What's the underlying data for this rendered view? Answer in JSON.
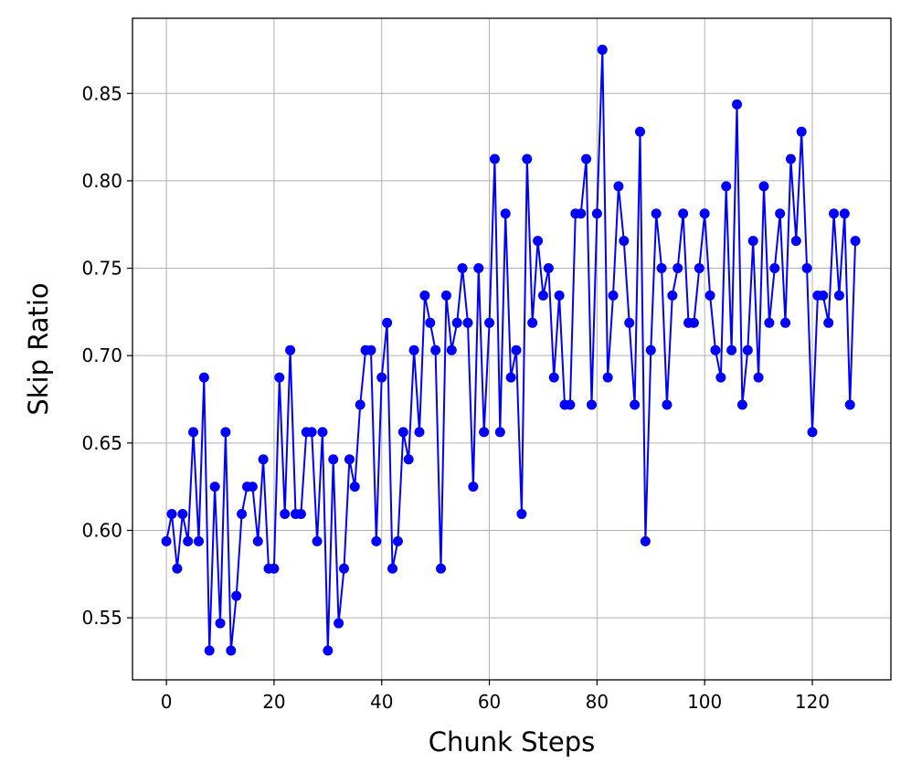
{
  "chart_data": {
    "type": "line",
    "title": "",
    "xlabel": "Chunk Steps",
    "ylabel": "Skip Ratio",
    "xlim": [
      -6.3,
      134.6
    ],
    "ylim": [
      0.5145,
      0.893
    ],
    "xticks": [
      0,
      20,
      40,
      60,
      80,
      100,
      120
    ],
    "xtick_labels": [
      "0",
      "20",
      "40",
      "60",
      "80",
      "100",
      "120"
    ],
    "yticks": [
      0.55,
      0.6,
      0.65,
      0.7,
      0.75,
      0.8,
      0.85
    ],
    "ytick_labels": [
      "0.55",
      "0.60",
      "0.65",
      "0.70",
      "0.75",
      "0.80",
      "0.85"
    ],
    "grid": true,
    "marker": "circle",
    "color": "#0000ff",
    "series": [
      {
        "values": [
          0.59375,
          0.609375,
          0.578125,
          0.609375,
          0.59375,
          0.65625,
          0.59375,
          0.6875,
          0.53125,
          0.625,
          0.546875,
          0.65625,
          0.53125,
          0.5625,
          0.609375,
          0.625,
          0.625,
          0.59375,
          0.640625,
          0.578125,
          0.578125,
          0.6875,
          0.609375,
          0.703125,
          0.609375,
          0.609375,
          0.65625,
          0.65625,
          0.59375,
          0.65625,
          0.53125,
          0.640625,
          0.546875,
          0.578125,
          0.640625,
          0.625,
          0.671875,
          0.703125,
          0.703125,
          0.59375,
          0.6875,
          0.71875,
          0.578125,
          0.59375,
          0.65625,
          0.640625,
          0.703125,
          0.65625,
          0.734375,
          0.71875,
          0.703125,
          0.578125,
          0.734375,
          0.703125,
          0.71875,
          0.75,
          0.71875,
          0.625,
          0.75,
          0.65625,
          0.71875,
          0.8125,
          0.65625,
          0.78125,
          0.6875,
          0.703125,
          0.609375,
          0.8125,
          0.71875,
          0.765625,
          0.734375,
          0.75,
          0.6875,
          0.734375,
          0.671875,
          0.671875,
          0.78125,
          0.78125,
          0.8125,
          0.671875,
          0.78125,
          0.875,
          0.6875,
          0.734375,
          0.796875,
          0.765625,
          0.71875,
          0.671875,
          0.828125,
          0.59375,
          0.703125,
          0.78125,
          0.75,
          0.671875,
          0.734375,
          0.75,
          0.78125,
          0.71875,
          0.71875,
          0.75,
          0.78125,
          0.734375,
          0.703125,
          0.6875,
          0.796875,
          0.703125,
          0.84375,
          0.671875,
          0.703125,
          0.765625,
          0.6875,
          0.796875,
          0.71875,
          0.75,
          0.78125,
          0.71875,
          0.8125,
          0.765625,
          0.828125,
          0.75,
          0.65625,
          0.734375,
          0.734375,
          0.71875,
          0.78125,
          0.734375,
          0.78125,
          0.671875,
          0.765625
        ]
      }
    ]
  }
}
